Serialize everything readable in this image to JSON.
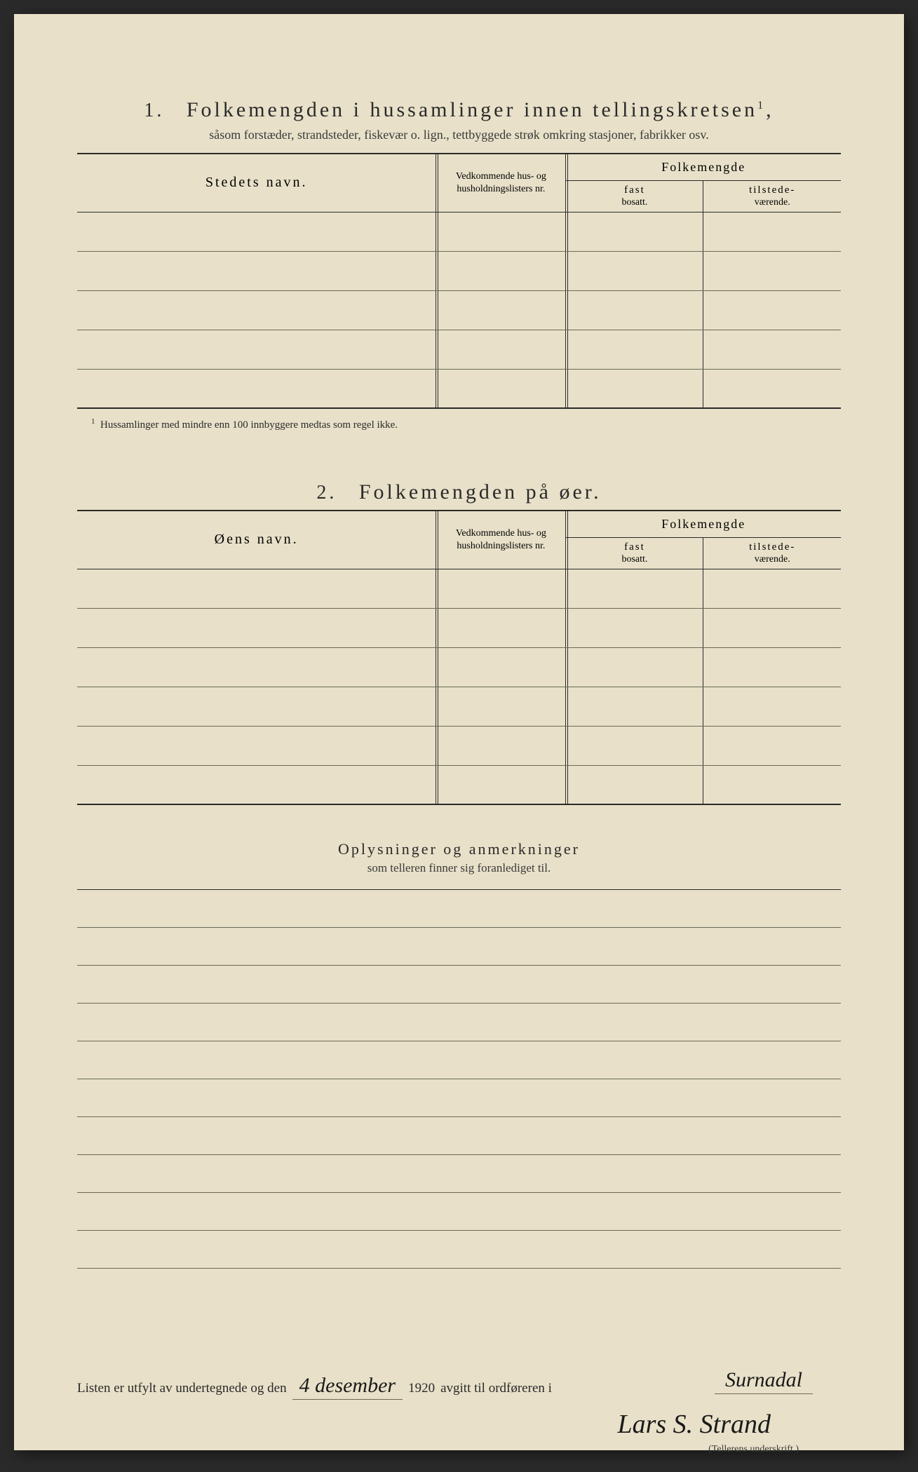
{
  "page": {
    "background_color": "#e8e0c8",
    "text_color": "#2a2a2a",
    "rule_color": "#2a2a2a",
    "light_rule_color": "#6a6a5a"
  },
  "section1": {
    "number": "1.",
    "title": "Folkemengden i hussamlinger innen tellingskretsen",
    "superscript": "1",
    "subtitle": "såsom forstæder, strandsteder, fiskevær o. lign., tettbyggede strøk omkring stasjoner, fabrikker osv.",
    "columns": {
      "name": "Stedets navn.",
      "lists": "Vedkommende hus- og husholdningslisters nr.",
      "pop_header": "Folkemengde",
      "pop_fast_em": "fast",
      "pop_fast_sub": "bosatt.",
      "pop_til_em": "tilstede-",
      "pop_til_sub": "værende."
    },
    "row_count": 5,
    "footnote_marker": "1",
    "footnote": "Hussamlinger med mindre enn 100 innbyggere medtas som regel ikke."
  },
  "section2": {
    "number": "2.",
    "title": "Folkemengden på øer.",
    "columns": {
      "name": "Øens navn.",
      "lists": "Vedkommende hus- og husholdningslisters nr.",
      "pop_header": "Folkemengde",
      "pop_fast_em": "fast",
      "pop_fast_sub": "bosatt.",
      "pop_til_em": "tilstede-",
      "pop_til_sub": "værende."
    },
    "row_count": 6
  },
  "section3": {
    "title": "Oplysninger og anmerkninger",
    "subtitle": "som telleren finner sig foranlediget til.",
    "line_count": 10
  },
  "signature": {
    "prefix": "Listen er utfylt av undertegnede og den",
    "date_hand": "4 desember",
    "year": "1920",
    "mid": "avgitt til ordføreren i",
    "place_hand": "Surnadal",
    "name_hand": "Lars S. Strand",
    "label": "(Tellerens underskrift.)"
  }
}
